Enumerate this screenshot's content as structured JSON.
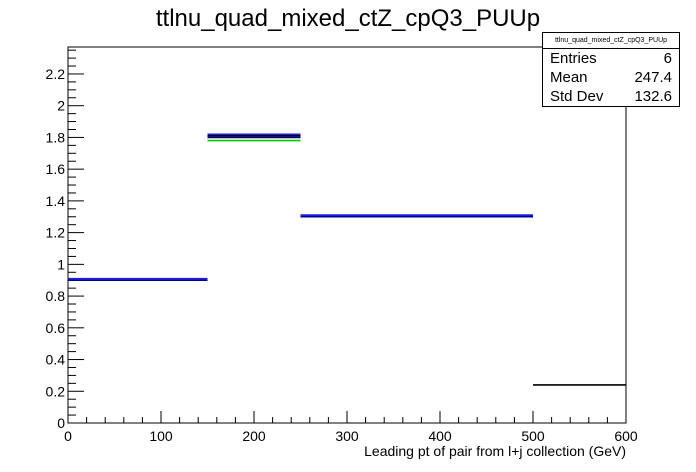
{
  "chart_data": {
    "type": "histogram",
    "title": "ttlnu_quad_mixed_ctZ_cpQ3_PUUp",
    "xlabel": "Leading pt of pair from l+j collection (GeV)",
    "ylabel": "",
    "xlim": [
      0,
      600
    ],
    "ylim": [
      0,
      2.37
    ],
    "x_ticks": [
      "0",
      "100",
      "200",
      "300",
      "400",
      "500",
      "600"
    ],
    "y_ticks": [
      "0",
      "0.2",
      "0.4",
      "0.6",
      "0.8",
      "1",
      "1.2",
      "1.4",
      "1.6",
      "1.8",
      "2",
      "2.2"
    ],
    "grid": false,
    "legend": "none",
    "series": [
      {
        "color": "#000000",
        "bins": [
          [
            0,
            150,
            0.9
          ],
          [
            150,
            250,
            1.81
          ],
          [
            250,
            500,
            1.31
          ],
          [
            500,
            600,
            0.24
          ]
        ]
      },
      {
        "color": "#1a1aff",
        "bins": [
          [
            0,
            150,
            0.91
          ],
          [
            150,
            250,
            1.82
          ],
          [
            250,
            500,
            1.31
          ]
        ]
      },
      {
        "color": "#00cc00",
        "bins": [
          [
            150,
            250,
            1.78
          ]
        ]
      },
      {
        "color": "#000080",
        "bins": [
          [
            0,
            150,
            0.9
          ],
          [
            150,
            250,
            1.8
          ],
          [
            250,
            500,
            1.3
          ]
        ]
      }
    ],
    "stats": {
      "title": "ttlnu_quad_mixed_ctZ_cpQ3_PUUp",
      "rows": [
        {
          "label": "Entries",
          "value": "6"
        },
        {
          "label": "Mean",
          "value": "247.4"
        },
        {
          "label": "Std Dev",
          "value": "132.6"
        }
      ]
    }
  }
}
